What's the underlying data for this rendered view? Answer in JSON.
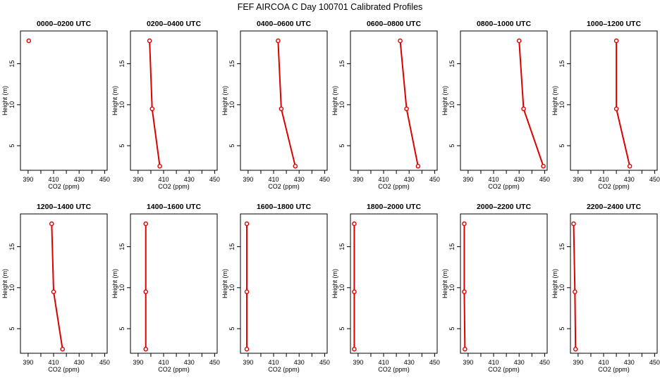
{
  "title": "FEF AIRCOA C  Day 100701  Calibrated Profiles",
  "colors": {
    "profile": "#dd0000",
    "axis": "#000000",
    "background": "#ffffff"
  },
  "chart_data": {
    "type": "line",
    "xlabel": "CO2 (ppm)",
    "ylabel": "Height (m)",
    "xlim": [
      384,
      452
    ],
    "ylim": [
      2,
      19
    ],
    "xticks": [
      390,
      410,
      430,
      450
    ],
    "xticks_minor": [
      400,
      420,
      440
    ],
    "yticks": [
      5,
      10,
      15
    ],
    "heights": [
      2.5,
      9.5,
      17.8
    ],
    "panels": [
      {
        "title": "0000–0200 UTC",
        "co2": [
          null,
          null,
          390.5
        ]
      },
      {
        "title": "0200–0400 UTC",
        "co2": [
          407.0,
          401.0,
          399.0
        ]
      },
      {
        "title": "0400–0600 UTC",
        "co2": [
          427.0,
          416.0,
          413.5
        ]
      },
      {
        "title": "0600–0800 UTC",
        "co2": [
          437.0,
          428.0,
          423.0
        ]
      },
      {
        "title": "0800–1000 UTC",
        "co2": [
          449.0,
          433.5,
          430.0
        ]
      },
      {
        "title": "1000–1200 UTC",
        "co2": [
          430.5,
          420.0,
          420.0
        ]
      },
      {
        "title": "1200–1400 UTC",
        "co2": [
          417.0,
          410.0,
          408.5
        ]
      },
      {
        "title": "1400–1600 UTC",
        "co2": [
          396.0,
          396.0,
          396.0
        ]
      },
      {
        "title": "1600–1800 UTC",
        "co2": [
          389.0,
          389.0,
          389.0
        ]
      },
      {
        "title": "1800–2000 UTC",
        "co2": [
          387.0,
          387.0,
          387.0
        ]
      },
      {
        "title": "2000–2200 UTC",
        "co2": [
          387.5,
          387.0,
          387.0
        ]
      },
      {
        "title": "2200–2400 UTC",
        "co2": [
          388.0,
          387.5,
          386.5
        ]
      }
    ]
  }
}
